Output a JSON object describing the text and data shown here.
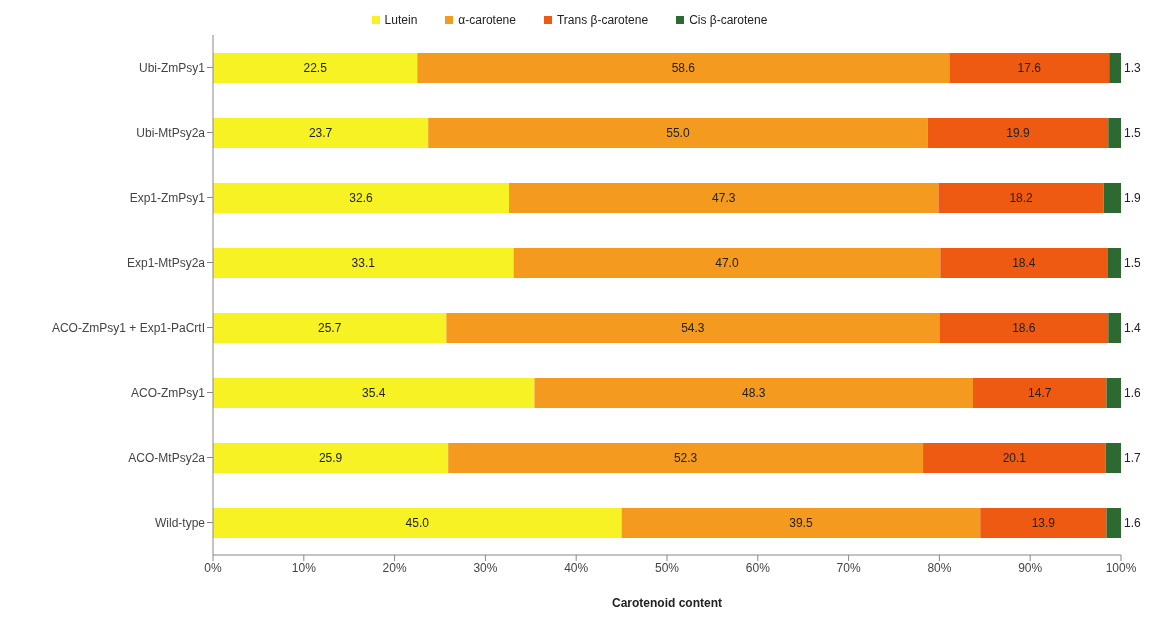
{
  "chart_data": {
    "type": "bar",
    "orientation": "horizontal",
    "stacked": true,
    "xlabel": "Carotenoid content",
    "categories": [
      "Ubi-ZmPsy1",
      "Ubi-MtPsy2a",
      "Exp1-ZmPsy1",
      "Exp1-MtPsy2a",
      "ACO-ZmPsy1 + Exp1-PaCrtI",
      "ACO-ZmPsy1",
      "ACO-MtPsy2a",
      "Wild-type"
    ],
    "series": [
      {
        "name": "Lutein",
        "color": "#f7f223",
        "values": [
          22.5,
          23.7,
          32.6,
          33.1,
          25.7,
          35.4,
          25.9,
          45.0
        ],
        "value_labels": [
          "22.5",
          "23.7",
          "32.6",
          "33.1",
          "25.7",
          "35.4",
          "25.9",
          "45.0"
        ]
      },
      {
        "name": "α-carotene",
        "color": "#f49a1e",
        "values": [
          58.6,
          55.0,
          47.3,
          47.0,
          54.3,
          48.3,
          52.3,
          39.5
        ],
        "value_labels": [
          "58.6",
          "55.0",
          "47.3",
          "47.0",
          "54.3",
          "48.3",
          "52.3",
          "39.5"
        ]
      },
      {
        "name": "Trans β-carotene",
        "color": "#ee5a12",
        "values": [
          17.6,
          19.9,
          18.2,
          18.4,
          18.6,
          14.7,
          20.1,
          13.9
        ],
        "value_labels": [
          "17.6",
          "19.9",
          "18.2",
          "18.4",
          "18.6",
          "14.7",
          "20.1",
          "13.9"
        ]
      },
      {
        "name": "Cis β-carotene",
        "color": "#2d6a31",
        "values": [
          1.3,
          1.5,
          1.9,
          1.5,
          1.4,
          1.6,
          1.7,
          1.6
        ],
        "value_labels": [
          "1.3",
          "1.5",
          "1.9",
          "1.5",
          "1.4",
          "1.6",
          "1.7",
          "1.6"
        ]
      }
    ],
    "xlim": [
      0,
      100
    ],
    "xticks": [
      {
        "value": 0,
        "label": "0%"
      },
      {
        "value": 10,
        "label": "10%"
      },
      {
        "value": 20,
        "label": "20%"
      },
      {
        "value": 30,
        "label": "30%"
      },
      {
        "value": 40,
        "label": "40%"
      },
      {
        "value": 50,
        "label": "50%"
      },
      {
        "value": 60,
        "label": "60%"
      },
      {
        "value": 70,
        "label": "70%"
      },
      {
        "value": 80,
        "label": "80%"
      },
      {
        "value": 90,
        "label": "90%"
      },
      {
        "value": 100,
        "label": "100%"
      }
    ],
    "legend": "top",
    "grid": false
  }
}
